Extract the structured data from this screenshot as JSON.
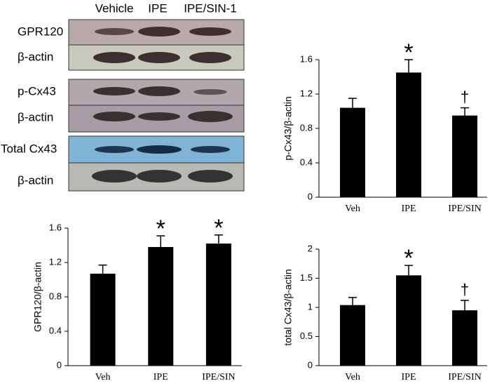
{
  "blot": {
    "columns": [
      "Vehicle",
      "IPE",
      "IPE/SIN-1"
    ],
    "rows": [
      "GPR120",
      "β-actin",
      "p-Cx43",
      "β-actin",
      "Total Cx43",
      "β-actin"
    ]
  },
  "chart_data": [
    {
      "type": "bar",
      "y_label": "GPR120/β-actin",
      "categories": [
        "Veh",
        "IPE",
        "IPE/SIN"
      ],
      "values": [
        1.07,
        1.38,
        1.42
      ],
      "errors": [
        0.1,
        0.13,
        0.1
      ],
      "annotations": [
        null,
        "*",
        "*"
      ],
      "color": "#000000",
      "ylim": [
        0,
        1.6
      ],
      "yticks": [
        0,
        0.4,
        0.8,
        1.2,
        1.6
      ],
      "grid": false
    },
    {
      "type": "bar",
      "y_label": "p-Cx43/β-actin",
      "categories": [
        "Veh",
        "IPE",
        "IPE/SIN"
      ],
      "values": [
        1.04,
        1.45,
        0.95
      ],
      "errors": [
        0.11,
        0.15,
        0.09
      ],
      "annotations": [
        null,
        "*",
        "†"
      ],
      "color": "#000000",
      "ylim": [
        0,
        1.6
      ],
      "yticks": [
        0,
        0.4,
        0.8,
        1.2,
        1.6
      ],
      "grid": false
    },
    {
      "type": "bar",
      "y_label": "total Cx43/β-actin",
      "categories": [
        "Veh",
        "IPE",
        "IPE/SIN"
      ],
      "values": [
        1.04,
        1.55,
        0.95
      ],
      "errors": [
        0.13,
        0.17,
        0.17
      ],
      "annotations": [
        null,
        "*",
        "†"
      ],
      "color": "#000000",
      "ylim": [
        0,
        2
      ],
      "yticks": [
        0,
        0.5,
        1,
        1.5,
        2
      ],
      "grid": false
    }
  ]
}
